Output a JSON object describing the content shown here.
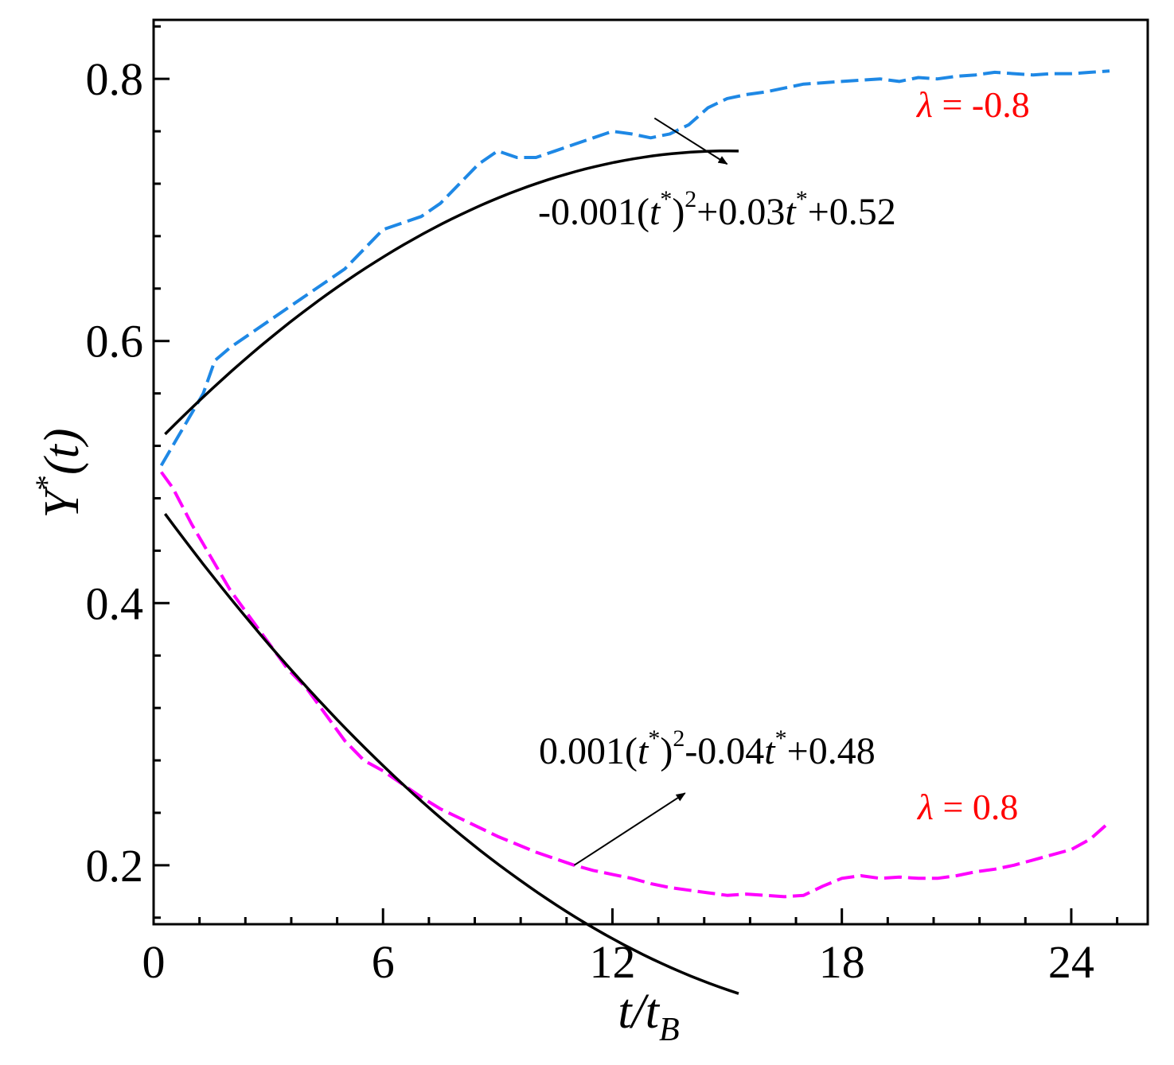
{
  "chart_data": {
    "type": "line",
    "title": "",
    "xlabel": {
      "main": "t/t",
      "sub": "B"
    },
    "ylabel": {
      "main": "Y",
      "sup": "*",
      "arg": "(t)"
    },
    "xlim": [
      0,
      26
    ],
    "ylim": [
      0.155,
      0.845
    ],
    "xticks": [
      0,
      6,
      12,
      18,
      24
    ],
    "xtick_labels": [
      "0",
      "6",
      "12",
      "18",
      "24"
    ],
    "xminor": 1.2,
    "yticks": [
      0.2,
      0.4,
      0.6,
      0.8
    ],
    "ytick_labels": [
      "0.2",
      "0.4",
      "0.6",
      "0.8"
    ],
    "yminor": 0.04,
    "grid": false,
    "colors": {
      "upper_sim": "#1e88e5",
      "lower_sim": "#ff00ff",
      "fit": "#000000",
      "label": "#ff0000",
      "axis": "#000000"
    },
    "series": [
      {
        "label": "λ = -0.8",
        "style": "dashed",
        "color": "#1e88e5",
        "x": [
          0.2,
          0.6,
          0.9,
          1.3,
          1.6,
          2.0,
          2.5,
          3.0,
          3.5,
          4.0,
          4.5,
          5.0,
          5.5,
          6.0,
          6.5,
          7.0,
          7.5,
          8.0,
          8.5,
          9.0,
          9.5,
          10.0,
          10.5,
          11.0,
          11.5,
          12.0,
          12.5,
          13.0,
          13.5,
          14.0,
          14.5,
          15.0,
          15.5,
          16.0,
          16.5,
          17.0,
          17.5,
          18.0,
          18.5,
          19.0,
          19.5,
          20.0,
          20.5,
          21.0,
          21.5,
          22.0,
          22.5,
          23.0,
          23.5,
          24.0,
          24.5,
          25.0
        ],
        "y": [
          0.505,
          0.525,
          0.54,
          0.56,
          0.585,
          0.595,
          0.605,
          0.615,
          0.625,
          0.635,
          0.645,
          0.655,
          0.67,
          0.685,
          0.69,
          0.695,
          0.705,
          0.72,
          0.735,
          0.745,
          0.74,
          0.74,
          0.745,
          0.75,
          0.755,
          0.76,
          0.758,
          0.755,
          0.758,
          0.765,
          0.778,
          0.785,
          0.788,
          0.79,
          0.793,
          0.796,
          0.797,
          0.798,
          0.799,
          0.8,
          0.798,
          0.801,
          0.8,
          0.802,
          0.803,
          0.805,
          0.804,
          0.803,
          0.804,
          0.804,
          0.805,
          0.806
        ]
      },
      {
        "label": "λ = 0.8",
        "style": "dashed",
        "color": "#ff00ff",
        "x": [
          0.2,
          0.5,
          1.0,
          1.5,
          2.0,
          2.5,
          3.0,
          3.5,
          4.0,
          4.5,
          5.0,
          5.5,
          6.0,
          6.5,
          7.0,
          7.5,
          8.0,
          8.5,
          9.0,
          9.5,
          10.0,
          10.5,
          11.0,
          11.5,
          12.0,
          12.5,
          13.0,
          13.5,
          14.0,
          14.5,
          15.0,
          15.5,
          16.0,
          16.5,
          17.0,
          17.5,
          18.0,
          18.5,
          19.0,
          19.5,
          20.0,
          20.5,
          21.0,
          21.5,
          22.0,
          22.5,
          23.0,
          23.5,
          24.0,
          24.5,
          25.0
        ],
        "y": [
          0.5,
          0.488,
          0.46,
          0.435,
          0.41,
          0.39,
          0.37,
          0.35,
          0.335,
          0.315,
          0.295,
          0.28,
          0.272,
          0.262,
          0.252,
          0.243,
          0.236,
          0.229,
          0.222,
          0.216,
          0.21,
          0.205,
          0.2,
          0.196,
          0.193,
          0.19,
          0.186,
          0.183,
          0.181,
          0.179,
          0.177,
          0.178,
          0.177,
          0.176,
          0.177,
          0.184,
          0.19,
          0.192,
          0.19,
          0.191,
          0.19,
          0.19,
          0.192,
          0.195,
          0.197,
          0.2,
          0.204,
          0.208,
          0.212,
          0.22,
          0.233
        ]
      },
      {
        "label": "-0.001(t*)²+0.03t*+0.52",
        "style": "solid",
        "color": "#000000",
        "fit": {
          "a": -0.001,
          "b": 0.03,
          "c": 0.52
        },
        "x_range": [
          0.3,
          15.3
        ]
      },
      {
        "label": "0.001(t*)²-0.04t*+0.48",
        "style": "solid",
        "color": "#000000",
        "fit": {
          "a": 0.001,
          "b": -0.04,
          "c": 0.48
        },
        "x_range": [
          0.3,
          15.3
        ]
      }
    ],
    "annotations": [
      {
        "kind": "equation",
        "parts": [
          "-0.001(",
          "t",
          "*",
          ")",
          "2",
          "+0.03",
          "t",
          "*",
          "+0.52"
        ],
        "arrow_from": [
          13.1,
          0.77
        ],
        "arrow_to": [
          15.0,
          0.735
        ]
      },
      {
        "kind": "equation",
        "parts": [
          "0.001(",
          "t",
          "*",
          ")",
          "2",
          "-0.04",
          "t",
          "*",
          "+0.48"
        ],
        "arrow_from": [
          11.0,
          0.2
        ],
        "arrow_to": [
          13.9,
          0.255
        ]
      },
      {
        "kind": "series-label",
        "symbol": "λ",
        "text": " = -0.8"
      },
      {
        "kind": "series-label",
        "symbol": "λ",
        "text": " = 0.8"
      }
    ]
  }
}
